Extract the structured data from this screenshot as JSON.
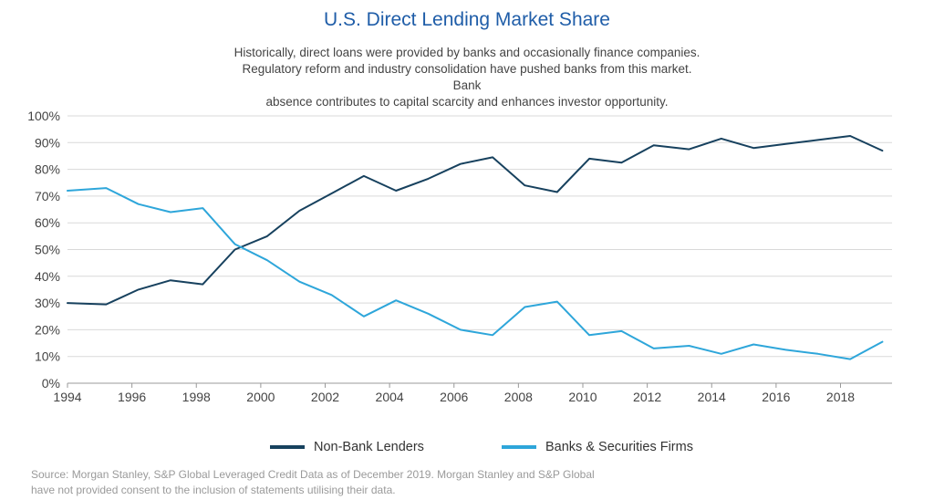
{
  "title": "U.S. Direct Lending Market Share",
  "subtitle_lines": [
    "Historically, direct loans were provided by banks and occasionally finance companies.",
    "Regulatory reform and industry consolidation have pushed banks from this market. Bank",
    "absence contributes to capital scarcity and enhances investor opportunity."
  ],
  "source_lines": [
    "Source: Morgan Stanley, S&P Global Leveraged Credit Data as of December 2019. Morgan Stanley and S&P Global",
    "have not provided consent to the inclusion of statements utilising their data."
  ],
  "colors": {
    "nonbank": "#17415e",
    "banks": "#2ea6da",
    "title": "#1f5da8",
    "grid": "#d9d9d9"
  },
  "chart_data": {
    "type": "line",
    "x": [
      1994,
      1995.2,
      1996.2,
      1997.2,
      1998.2,
      1999.2,
      2000.2,
      2001.2,
      2002.2,
      2003.2,
      2004.2,
      2005.2,
      2006.2,
      2007.2,
      2008.2,
      2009.2,
      2010.2,
      2011.2,
      2012.2,
      2013.3,
      2014.3,
      2015.3,
      2016.3,
      2017.3,
      2018.3,
      2019.3
    ],
    "series": [
      {
        "name": "Non-Bank Lenders",
        "values": [
          30,
          29.5,
          35,
          38.5,
          37,
          50,
          55,
          64.5,
          71,
          77.5,
          72,
          76.5,
          82,
          84.5,
          74,
          71.5,
          84,
          82.5,
          89,
          87.5,
          91.5,
          88,
          89.5,
          91,
          92.5,
          87
        ]
      },
      {
        "name": "Banks & Securities Firms",
        "values": [
          72,
          73,
          67,
          64,
          65.5,
          52,
          46,
          38,
          33,
          25,
          31,
          26,
          20,
          18,
          28.5,
          30.5,
          18,
          19.5,
          13,
          14,
          11,
          14.5,
          12.5,
          11,
          9,
          15.5
        ]
      }
    ],
    "x_ticks": [
      1994,
      1996,
      1998,
      2000,
      2002,
      2004,
      2006,
      2008,
      2010,
      2012,
      2014,
      2016,
      2018
    ],
    "x_tick_labels": [
      "1994",
      "1996",
      "1998",
      "2000",
      "2002",
      "2004",
      "2006",
      "2008",
      "2010",
      "2012",
      "2014",
      "2016",
      "2018"
    ],
    "y_ticks": [
      0,
      10,
      20,
      30,
      40,
      50,
      60,
      70,
      80,
      90,
      100
    ],
    "y_tick_labels": [
      "0%",
      "10%",
      "20%",
      "30%",
      "40%",
      "50%",
      "60%",
      "70%",
      "80%",
      "90%",
      "100%"
    ],
    "xlim": [
      1994,
      2019.6
    ],
    "ylim": [
      0,
      100
    ],
    "grid": true,
    "legend": "bottom-center"
  }
}
